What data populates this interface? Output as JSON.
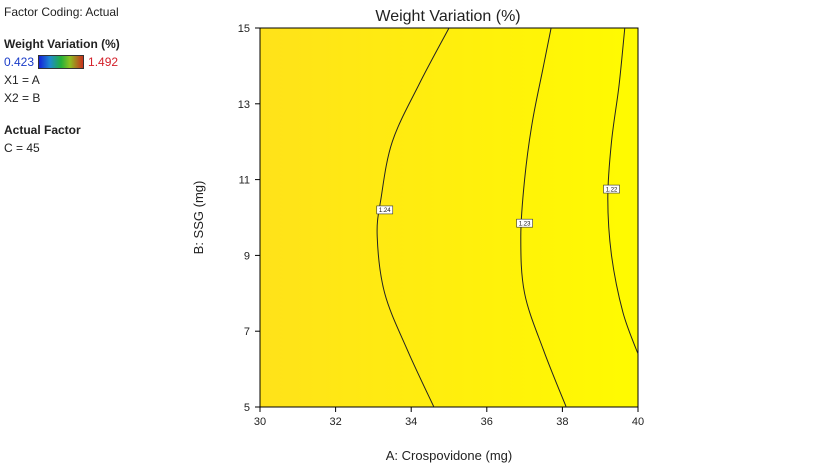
{
  "panel": {
    "factor_coding": "Factor Coding: Actual",
    "response_title": "Weight Variation  (%)",
    "legend_min": "0.423",
    "legend_max": "1.492",
    "x1": "X1 = A",
    "x2": "X2 = B",
    "actual_factor_title": "Actual Factor",
    "actual_factor_value": "C = 45"
  },
  "colors": {
    "fill_left": "#ffe21a",
    "fill_right": "#fffb00",
    "contour": "#222222",
    "axis": "#000000"
  },
  "chart_data": {
    "type": "contour",
    "title": "Weight Variation  (%)",
    "xlabel": "A: Crospovidone (mg)",
    "ylabel": "B: SSG (mg)",
    "xlim": [
      30,
      40
    ],
    "ylim": [
      5,
      15
    ],
    "xticks": [
      30,
      32,
      34,
      36,
      38,
      40
    ],
    "yticks": [
      5,
      7,
      9,
      11,
      13,
      15
    ],
    "contours": [
      {
        "label": "1.24",
        "label_at": [
          33.3,
          10.2
        ],
        "points": [
          [
            34.6,
            5
          ],
          [
            33.9,
            6.5
          ],
          [
            33.3,
            8
          ],
          [
            33.1,
            9.5
          ],
          [
            33.2,
            10.5
          ],
          [
            33.5,
            12
          ],
          [
            34.2,
            13.5
          ],
          [
            35.0,
            15
          ]
        ]
      },
      {
        "label": "1.23",
        "label_at": [
          37.0,
          9.85
        ],
        "points": [
          [
            38.1,
            5
          ],
          [
            37.5,
            6.5
          ],
          [
            37.0,
            8
          ],
          [
            36.9,
            9.5
          ],
          [
            37.0,
            11
          ],
          [
            37.2,
            12.5
          ],
          [
            37.5,
            14
          ],
          [
            37.7,
            15
          ]
        ]
      },
      {
        "label": "1.22",
        "label_at": [
          39.3,
          10.75
        ],
        "points": [
          [
            40.0,
            6.4
          ],
          [
            39.6,
            7.5
          ],
          [
            39.3,
            9
          ],
          [
            39.2,
            10.5
          ],
          [
            39.3,
            12
          ],
          [
            39.5,
            13.5
          ],
          [
            39.65,
            15
          ]
        ]
      }
    ]
  }
}
